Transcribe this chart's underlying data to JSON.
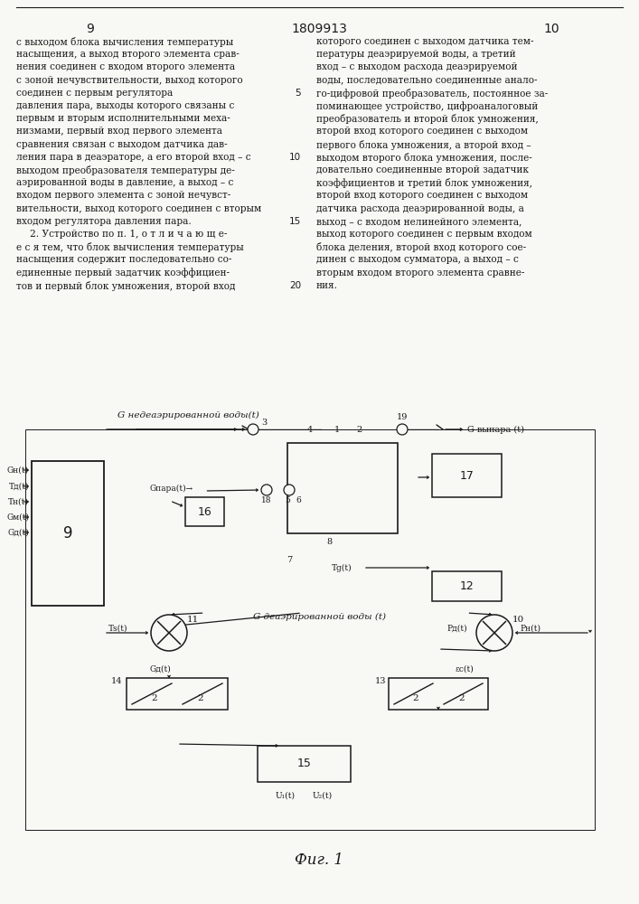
{
  "bg": "#f8f8f5",
  "lc": "#1a1a1a",
  "page_left": "9",
  "page_center": "1809913",
  "page_right": "10",
  "left_col": [
    "с выходом блока вычисления температуры",
    "насыщения, а выход второго элемента срав-",
    "нения соединен с входом второго элемента",
    "с зоной нечувствительности, выход которого",
    "соединен с первым регулятора",
    "давления пара, выходы которого связаны с",
    "первым и вторым исполнительными меха-",
    "низмами, первый вход первого элемента",
    "сравнения связан с выходом датчика дав-",
    "ления пара в деаэраторе, а его второй вход – с",
    "выходом преобразователя температуры де-",
    "аэрированной воды в давление, а выход – с",
    "входом первого элемента с зоной нечувст-",
    "вительности, выход которого соединен с вторым",
    "входом регулятора давления пара.",
    "2. Устройство по п. 1, о т л и ч а ю щ е-",
    "е с я тем, что блок вычисления температуры",
    "насыщения содержит последовательно со-",
    "единенные первый задатчик коэффициен-",
    "тов и первый блок умножения, второй вход"
  ],
  "right_col": [
    "которого соединен с выходом датчика тем-",
    "пературы деаэрируемой воды, а третий",
    "вход – с выходом расхода деаэрируемой",
    "воды, последовательно соединенные анало-",
    "го-цифровой преобразователь, постоянное за-",
    "поминающее устройство, цифроаналоговый",
    "преобразователь и второй блок умножения,",
    "второй вход которого соединен с выходом",
    "первого блока умножения, а второй вход –",
    "выходом второго блока умножения, после-",
    "довательно соединенные второй задатчик",
    "коэффициентов и третий блок умножения,",
    "второй вход которого соединен с выходом",
    "датчика расхода деаэрированной воды, а",
    "выход – с входом нелинейного элемента,",
    "выход которого соединен с первым входом",
    "блока деления, второй вход которого сое-",
    "динен с выходом сумматора, а выход – с",
    "вторым входом второго элемента сравне-",
    "ния."
  ],
  "line_nums": [
    5,
    10,
    15,
    20
  ],
  "fig_caption": "Фиг. 1"
}
